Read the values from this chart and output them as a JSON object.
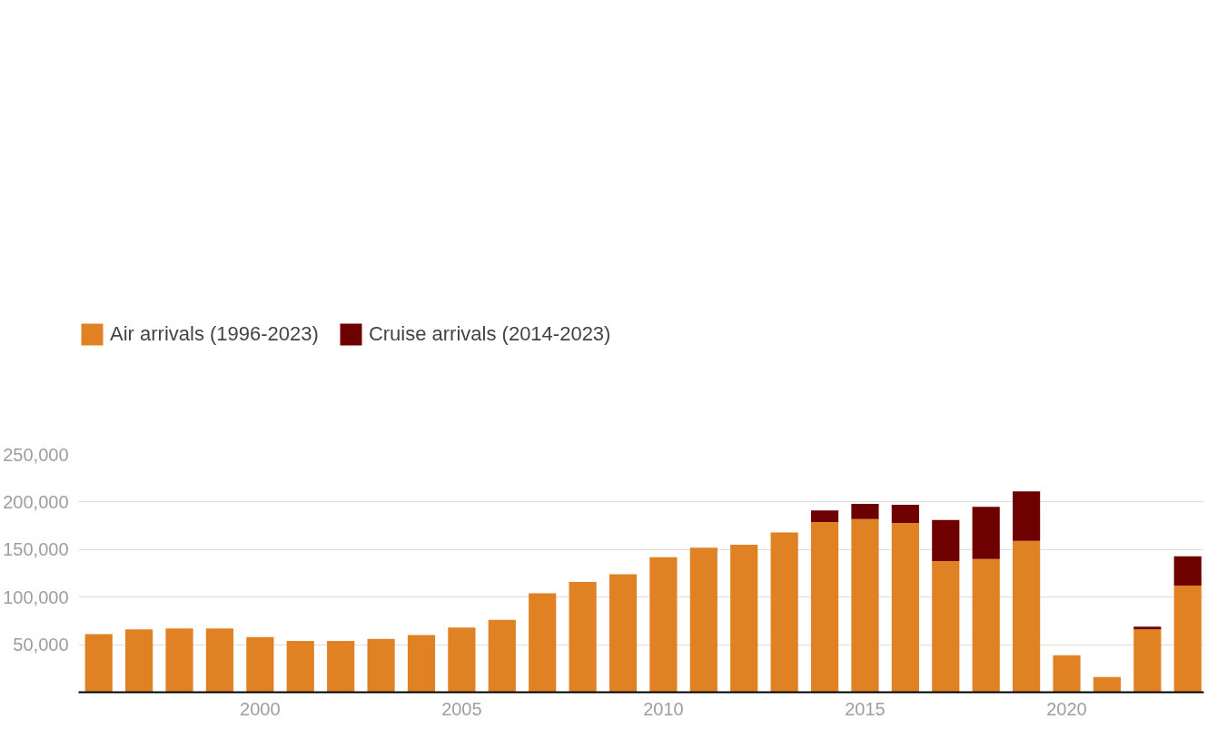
{
  "chart_data": {
    "type": "bar",
    "stacked": true,
    "x": [
      1996,
      1997,
      1998,
      1999,
      2000,
      2001,
      2002,
      2003,
      2004,
      2005,
      2006,
      2007,
      2008,
      2009,
      2010,
      2011,
      2012,
      2013,
      2014,
      2015,
      2016,
      2017,
      2018,
      2019,
      2020,
      2021,
      2022,
      2023
    ],
    "series": [
      {
        "name": "Air arrivals (1996-2023)",
        "color": "#e08224",
        "values": [
          61000,
          66000,
          67000,
          67000,
          58000,
          54000,
          54000,
          56000,
          60000,
          68000,
          76000,
          104000,
          116000,
          124000,
          142000,
          152000,
          155000,
          168000,
          179000,
          182000,
          178000,
          138000,
          140000,
          159000,
          39000,
          16000,
          66000,
          112000
        ]
      },
      {
        "name": "Cruise arrivals (2014-2023)",
        "color": "#6e0000",
        "values": [
          null,
          null,
          null,
          null,
          null,
          null,
          null,
          null,
          null,
          null,
          null,
          null,
          null,
          null,
          null,
          null,
          null,
          null,
          12000,
          16000,
          19000,
          43000,
          55000,
          52000,
          null,
          null,
          3000,
          31000
        ]
      }
    ],
    "xlim": [
      1995.5,
      2023.4
    ],
    "xticks": [
      2000,
      2005,
      2010,
      2015,
      2020
    ],
    "ylim": [
      0,
      250000
    ],
    "yticks": [
      {
        "value": 50000,
        "label": "50,000"
      },
      {
        "value": 100000,
        "label": "100,000"
      },
      {
        "value": 150000,
        "label": "150,000"
      },
      {
        "value": 200000,
        "label": "200,000"
      },
      {
        "value": 250000,
        "label": "250,000"
      }
    ],
    "grid": "y",
    "legend": "top left"
  }
}
